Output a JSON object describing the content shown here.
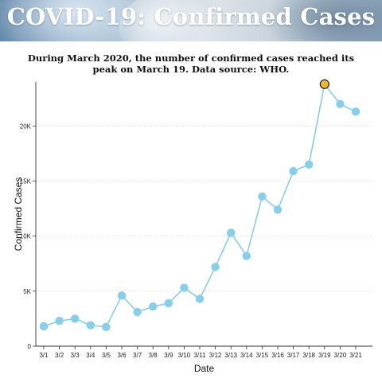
{
  "banner": {
    "title": "COVID-19: Confirmed Cases"
  },
  "subtitle": "During March 2020, the number of confirmed cases reached its peak on March 19. Data source: WHO.",
  "chart_data": {
    "type": "line",
    "xlabel": "Date",
    "ylabel": "Confirmed Cases",
    "categories": [
      "3/1",
      "3/2",
      "3/3",
      "3/4",
      "3/5",
      "3/6",
      "3/7",
      "3/8",
      "3/9",
      "3/10",
      "3/11",
      "3/12",
      "3/13",
      "3/14",
      "3/15",
      "3/16",
      "3/17",
      "3/18",
      "3/19",
      "3/20",
      "3/21"
    ],
    "series": [
      {
        "values": [
          1800,
          2300,
          2500,
          1900,
          1750,
          4600,
          3100,
          3600,
          3900,
          5300,
          4300,
          7200,
          10300,
          8200,
          13600,
          12400,
          15900,
          16500,
          23800,
          22000,
          21300
        ]
      }
    ],
    "highlight": {
      "category": "3/19",
      "color": "#f2b632"
    },
    "ylim": [
      0,
      24000
    ],
    "yticks": [
      0,
      5000,
      10000,
      15000,
      20000
    ],
    "ytick_labels": [
      "0",
      "5K",
      "10K",
      "15K",
      "20K"
    ],
    "grid": true,
    "colors": {
      "line": "#87ceeb",
      "marker": "#87ceeb",
      "highlight": "#f2b632",
      "grid": "#d6d6d6"
    }
  }
}
